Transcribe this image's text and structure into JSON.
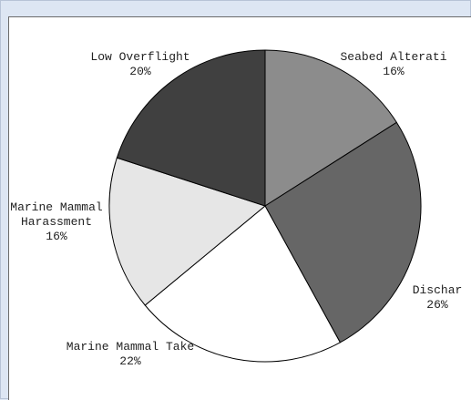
{
  "chart_data": {
    "type": "pie",
    "title": "",
    "start_angle": "top, clockwise",
    "slices": [
      {
        "label": "Seabed Alteration",
        "display_label": "Seabed Alterati",
        "pct_label": "16%",
        "value": 16,
        "color": "#8c8c8c"
      },
      {
        "label": "Discharge",
        "display_label": "Dischar",
        "pct_label": "26%",
        "value": 26,
        "color": "#666666"
      },
      {
        "label": "Marine Mammal Take",
        "display_label": "Marine Mammal Take",
        "pct_label": "22%",
        "value": 22,
        "color": "#ffffff"
      },
      {
        "label": "Marine Mammal Harassment",
        "display_label": "Marine Mammal|Harassment",
        "pct_label": "16%",
        "value": 16,
        "color": "#e6e6e6"
      },
      {
        "label": "Low Overflight",
        "display_label": "Low Overflight",
        "pct_label": "20%",
        "value": 20,
        "color": "#404040"
      }
    ]
  }
}
